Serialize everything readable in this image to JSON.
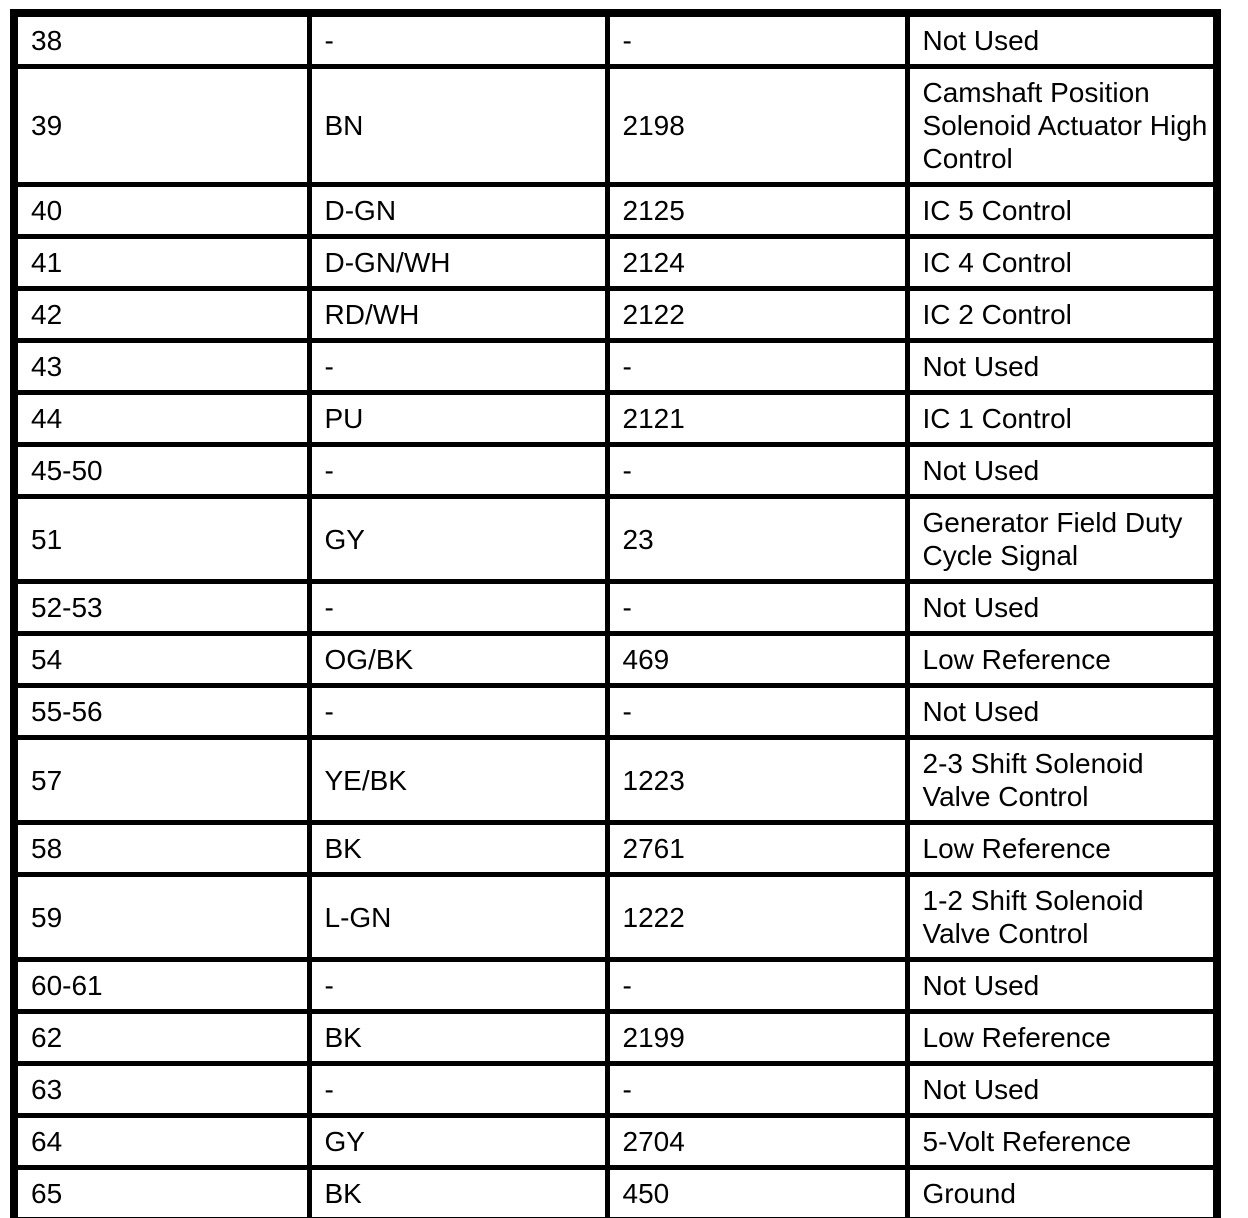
{
  "colors": {
    "ink": "#000000",
    "paper": "#ffffff"
  },
  "table": {
    "column_keys": [
      "pin",
      "wire_color",
      "circuit",
      "function"
    ],
    "rows": [
      {
        "pin": "38",
        "wire_color": "-",
        "circuit": "-",
        "function": "Not Used"
      },
      {
        "pin": "39",
        "wire_color": "BN",
        "circuit": "2198",
        "function": "Camshaft Position Solenoid Actuator High Control"
      },
      {
        "pin": "40",
        "wire_color": "D-GN",
        "circuit": "2125",
        "function": "IC 5 Control"
      },
      {
        "pin": "41",
        "wire_color": "D-GN/WH",
        "circuit": "2124",
        "function": "IC 4 Control"
      },
      {
        "pin": "42",
        "wire_color": "RD/WH",
        "circuit": "2122",
        "function": "IC 2 Control"
      },
      {
        "pin": "43",
        "wire_color": "-",
        "circuit": "-",
        "function": "Not Used"
      },
      {
        "pin": "44",
        "wire_color": "PU",
        "circuit": "2121",
        "function": "IC 1 Control"
      },
      {
        "pin": "45-50",
        "wire_color": "-",
        "circuit": "-",
        "function": "Not Used"
      },
      {
        "pin": "51",
        "wire_color": "GY",
        "circuit": "23",
        "function": "Generator Field Duty Cycle Signal"
      },
      {
        "pin": "52-53",
        "wire_color": "-",
        "circuit": "-",
        "function": "Not Used"
      },
      {
        "pin": "54",
        "wire_color": "OG/BK",
        "circuit": "469",
        "function": "Low Reference"
      },
      {
        "pin": "55-56",
        "wire_color": "-",
        "circuit": "-",
        "function": "Not Used"
      },
      {
        "pin": "57",
        "wire_color": "YE/BK",
        "circuit": "1223",
        "function": "2-3 Shift Solenoid Valve Control"
      },
      {
        "pin": "58",
        "wire_color": "BK",
        "circuit": "2761",
        "function": "Low Reference"
      },
      {
        "pin": "59",
        "wire_color": "L-GN",
        "circuit": "1222",
        "function": "1-2 Shift Solenoid Valve Control"
      },
      {
        "pin": "60-61",
        "wire_color": "-",
        "circuit": "-",
        "function": "Not Used"
      },
      {
        "pin": "62",
        "wire_color": "BK",
        "circuit": "2199",
        "function": "Low Reference"
      },
      {
        "pin": "63",
        "wire_color": "-",
        "circuit": "-",
        "function": "Not Used"
      },
      {
        "pin": "64",
        "wire_color": "GY",
        "circuit": "2704",
        "function": "5-Volt Reference"
      },
      {
        "pin": "65",
        "wire_color": "BK",
        "circuit": "450",
        "function": "Ground"
      }
    ]
  }
}
